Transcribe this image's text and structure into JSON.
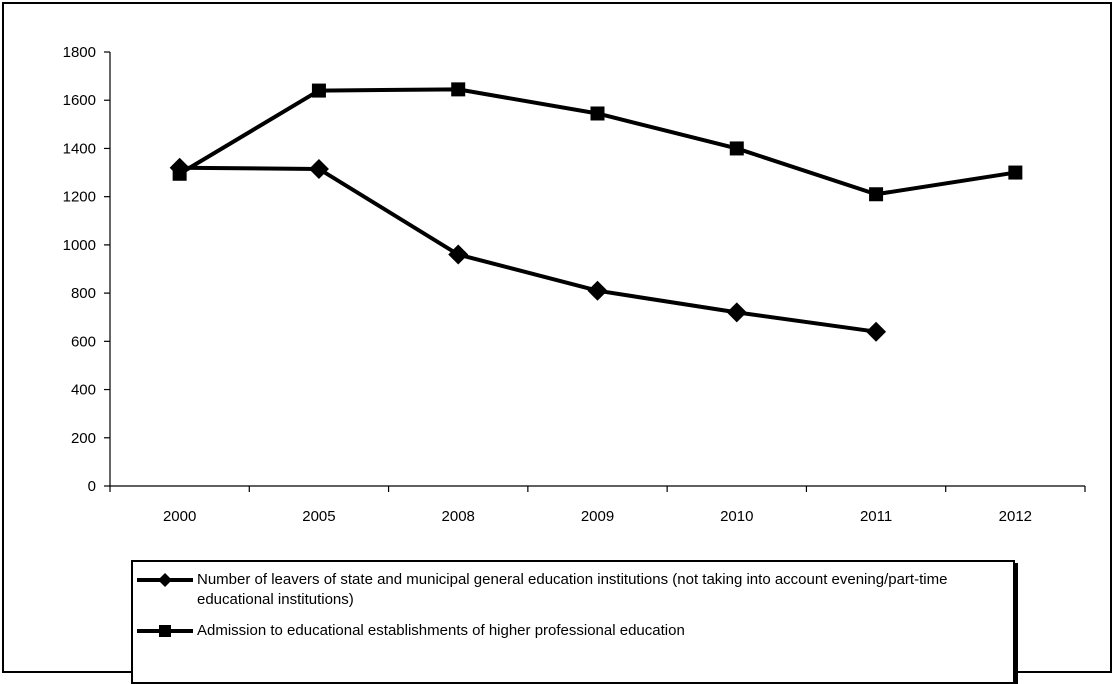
{
  "chart_data": {
    "type": "line",
    "categories": [
      "2000",
      "2005",
      "2008",
      "2009",
      "2010",
      "2011",
      "2012"
    ],
    "ylim": [
      0,
      1800
    ],
    "yticks": [
      "0",
      "200",
      "400",
      "600",
      "800",
      "1000",
      "1200",
      "1400",
      "1600",
      "1800"
    ],
    "grid": false,
    "legend_position": "bottom",
    "series": [
      {
        "name": "Number of leavers of state and municipal general education institutions (not taking into account evening/part-time educational institutions)",
        "marker": "diamond",
        "color": "#000000",
        "values": [
          1320,
          1315,
          960,
          810,
          720,
          640,
          null
        ]
      },
      {
        "name": "Admission to educational establishments of higher professional education",
        "marker": "square",
        "color": "#000000",
        "values": [
          1295,
          1640,
          1645,
          1545,
          1400,
          1210,
          1300
        ]
      }
    ]
  }
}
